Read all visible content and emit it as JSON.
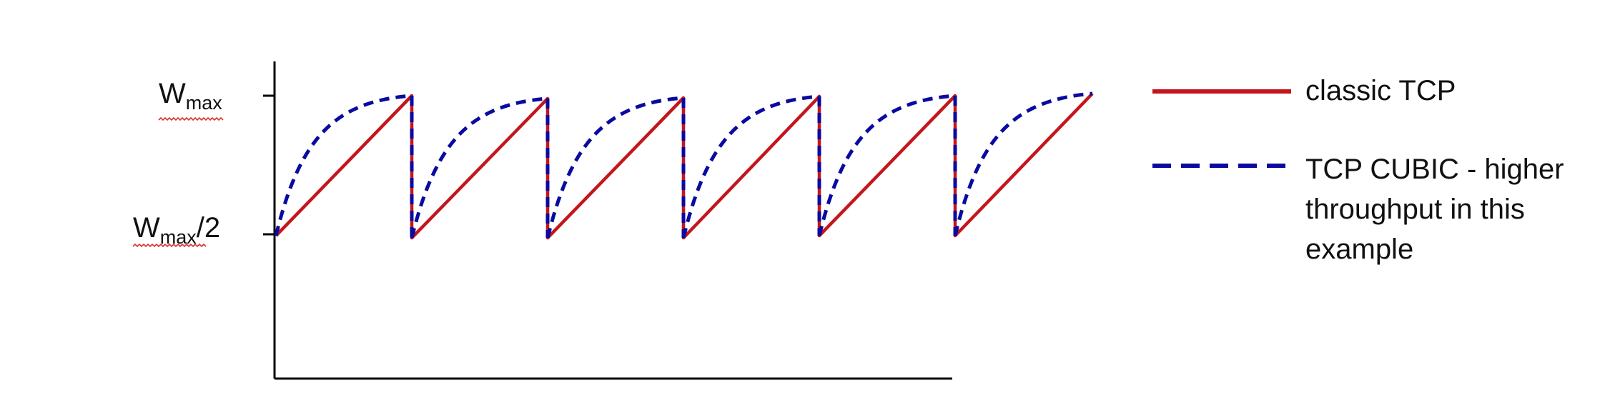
{
  "diagram": {
    "y_ticks": [
      {
        "main": "W",
        "sub": "max",
        "suffix": ""
      },
      {
        "main": "W",
        "sub": "max",
        "suffix": "/2"
      }
    ],
    "legend": [
      {
        "label_lines": [
          "classic TCP"
        ]
      },
      {
        "label_lines": [
          "TCP CUBIC - higher",
          "throughput in this",
          "example"
        ]
      }
    ],
    "colors": {
      "classic": "#c4161c",
      "cubic": "#0a0aa0",
      "axis": "#000000",
      "text": "#111111"
    },
    "cycles": 5
  }
}
